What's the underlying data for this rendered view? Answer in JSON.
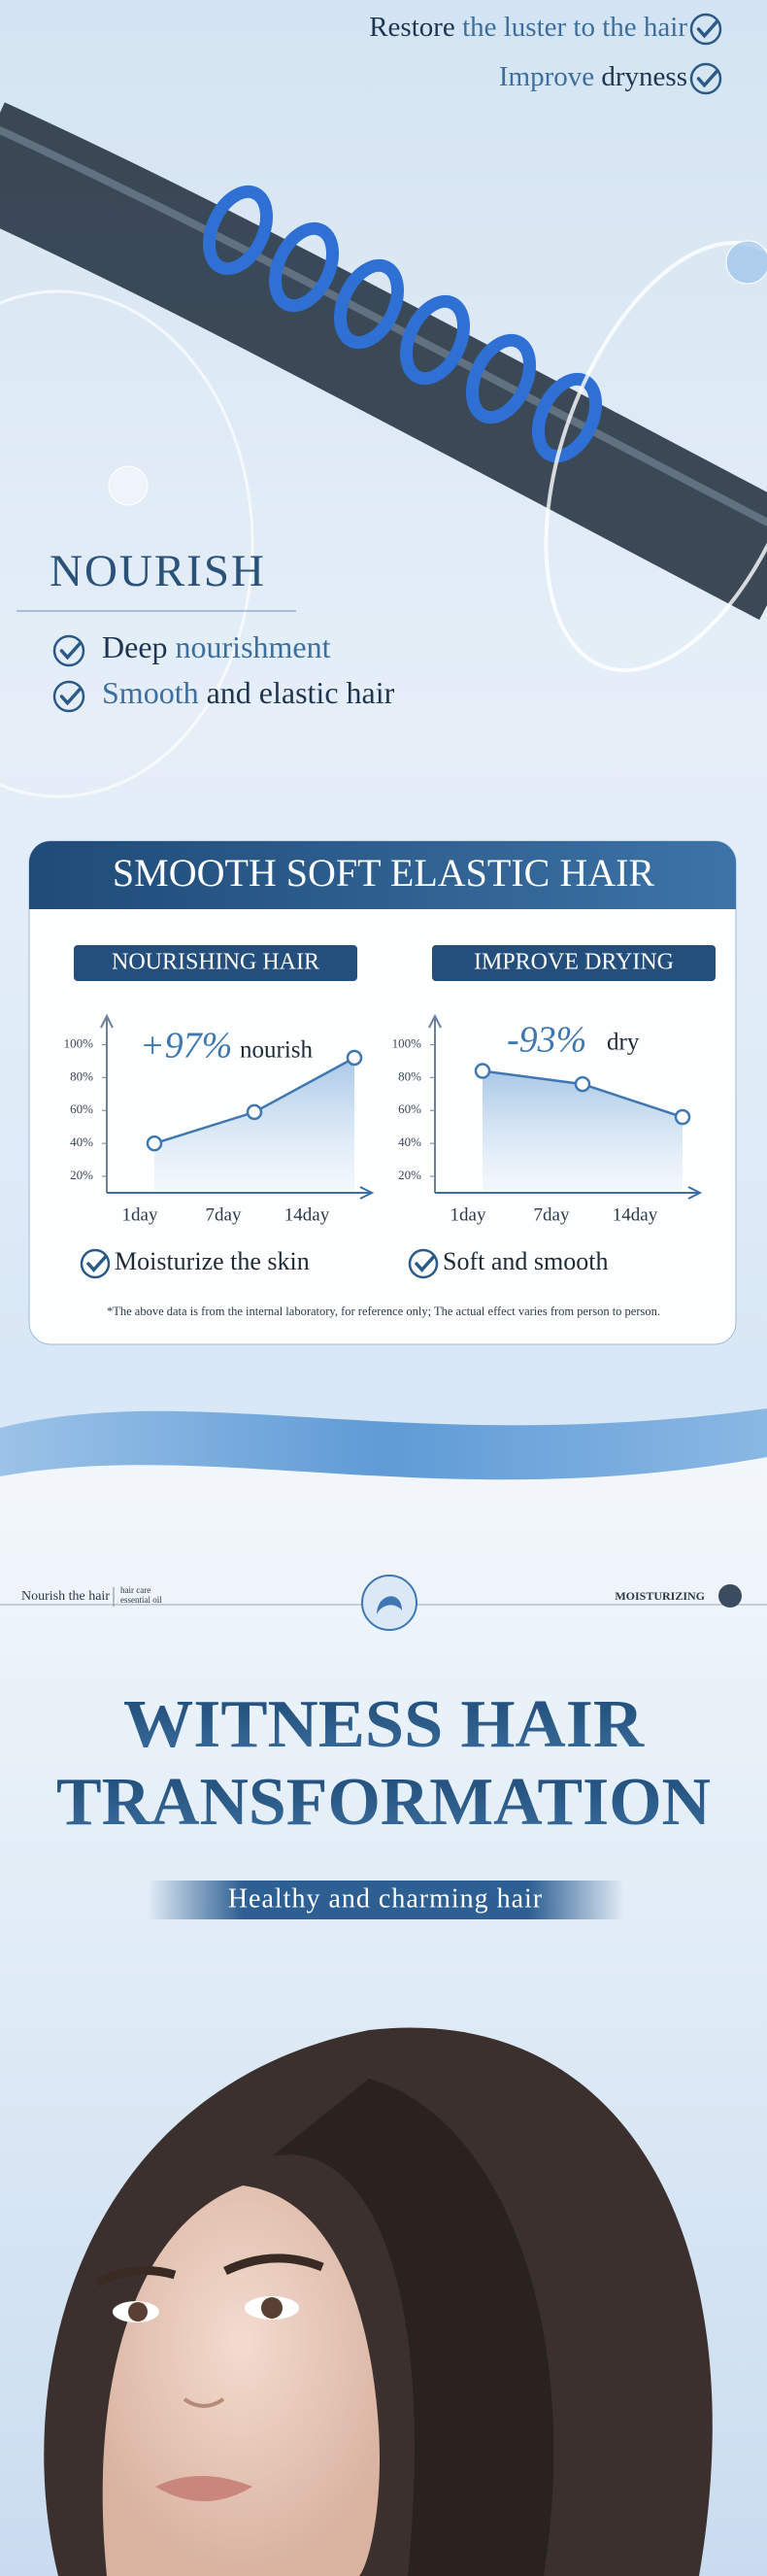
{
  "top_benefits": [
    [
      "Restore",
      "the luster to the hair"
    ],
    [
      "Improve",
      "dryness"
    ]
  ],
  "nourish": {
    "title": "NOURISH",
    "items": [
      [
        "Deep",
        "nourishment"
      ],
      [
        "Smooth",
        "and elastic hair"
      ]
    ]
  },
  "card": {
    "title": "SMOOTH SOFT ELASTIC HAIR",
    "footnote": "*The above data is from the internal laboratory, for reference only; The actual effect varies from person to person."
  },
  "chart_data": [
    {
      "type": "line",
      "title": "NOURISHING HAIR",
      "annotation": "+97%",
      "annotation_label": "nourish",
      "categories": [
        "1day",
        "7day",
        "14day"
      ],
      "values": [
        40,
        59,
        92
      ],
      "color": "#3f78b0",
      "ylim": [
        10,
        115
      ],
      "yticks": [
        {
          "value": 20,
          "label": "20%"
        },
        {
          "value": 40,
          "label": "40%"
        },
        {
          "value": 60,
          "label": "60%"
        },
        {
          "value": 80,
          "label": "80%"
        },
        {
          "value": 100,
          "label": "100%"
        }
      ],
      "caption": "Moisturize the skin"
    },
    {
      "type": "line",
      "title": "IMPROVE DRYING",
      "annotation": "-93%",
      "annotation_label": "dry",
      "categories": [
        "1day",
        "7day",
        "14day"
      ],
      "values": [
        84,
        76,
        56
      ],
      "color": "#3f78b0",
      "ylim": [
        10,
        115
      ],
      "yticks": [
        {
          "value": 20,
          "label": "20%"
        },
        {
          "value": 40,
          "label": "40%"
        },
        {
          "value": 60,
          "label": "60%"
        },
        {
          "value": 80,
          "label": "80%"
        },
        {
          "value": 100,
          "label": "100%"
        }
      ],
      "caption": "Soft and smooth"
    }
  ],
  "nav": {
    "left": "Nourish the hair",
    "left_sub": [
      "hair care",
      "essential oil"
    ],
    "right": "MOISTURIZING"
  },
  "headline": [
    "WITNESS HAIR",
    "TRANSFORMATION"
  ],
  "tagline": "Healthy and charming hair"
}
